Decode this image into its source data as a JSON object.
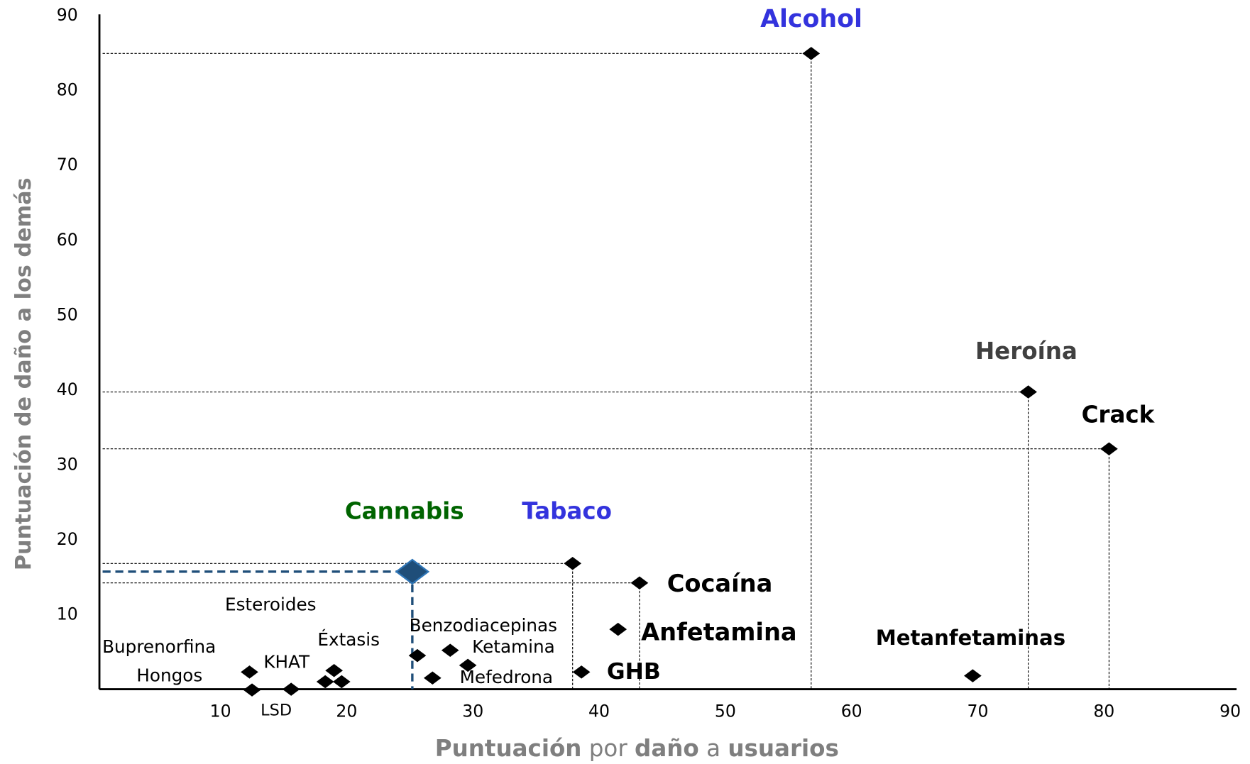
{
  "chart_data": {
    "type": "scatter",
    "xlabel": [
      "Puntuación",
      "por",
      "daño",
      "a",
      "usuarios"
    ],
    "ylabel": "Puntuación de daño a los demás",
    "xlim": [
      0,
      90
    ],
    "ylim": [
      0,
      90
    ],
    "xticks": [
      10,
      20,
      30,
      40,
      50,
      60,
      70,
      80,
      90
    ],
    "yticks": [
      10,
      20,
      30,
      40,
      50,
      60,
      70,
      80,
      90
    ],
    "color": "#000000",
    "points": [
      {
        "name": "Alcohol",
        "x": 56.8,
        "y": 85,
        "label_color": "#3333dd"
      },
      {
        "name": "Heroína",
        "x": 74,
        "y": 39.8,
        "label_color": "#404040"
      },
      {
        "name": "Crack",
        "x": 80.4,
        "y": 32.2,
        "label_color": "#000000"
      },
      {
        "name": "Metanfetaminas",
        "x": 69.6,
        "y": 1.9,
        "label_color": "#000000"
      },
      {
        "name": "Cocaína",
        "x": 43.2,
        "y": 14.3,
        "label_color": "#000000"
      },
      {
        "name": "Anfetamina",
        "x": 41.5,
        "y": 8.1,
        "label_color": "#000000"
      },
      {
        "name": "GHB",
        "x": 38.6,
        "y": 2.4,
        "label_color": "#000000"
      },
      {
        "name": "Tabaco",
        "x": 37.9,
        "y": 16.9,
        "label_color": "#3333dd"
      },
      {
        "name": "Cannabis",
        "x": 25.2,
        "y": 15.8,
        "label_color": "#006400",
        "color": "#1f4e79"
      },
      {
        "name": "Benzodiacepinas",
        "x": 25.6,
        "y": 4.6,
        "label_color": "#000000"
      },
      {
        "name": "Ketamina",
        "x": 28.2,
        "y": 5.3,
        "label_color": "#000000"
      },
      {
        "name": "Mefedrona",
        "x": 26.8,
        "y": 1.6,
        "label_color": "#000000"
      },
      {
        "name": null,
        "x": 29.6,
        "y": 3.3
      },
      {
        "name": "Éxtasis",
        "x": 19,
        "y": 2.6,
        "label_color": "#000000"
      },
      {
        "name": "KHAT",
        "x": 18.3,
        "y": 1.1,
        "label_color": "#000000"
      },
      {
        "name": "Esteroides",
        "x": 19.6,
        "y": 1.1,
        "label_color": "#000000"
      },
      {
        "name": "Buprenorfina",
        "x": 12.3,
        "y": 2.4,
        "label_color": "#000000"
      },
      {
        "name": "Hongos",
        "x": 12.5,
        "y": 0,
        "label_color": "#000000"
      },
      {
        "name": "LSD",
        "x": 15.6,
        "y": 0.1,
        "label_color": "#000000"
      }
    ]
  }
}
